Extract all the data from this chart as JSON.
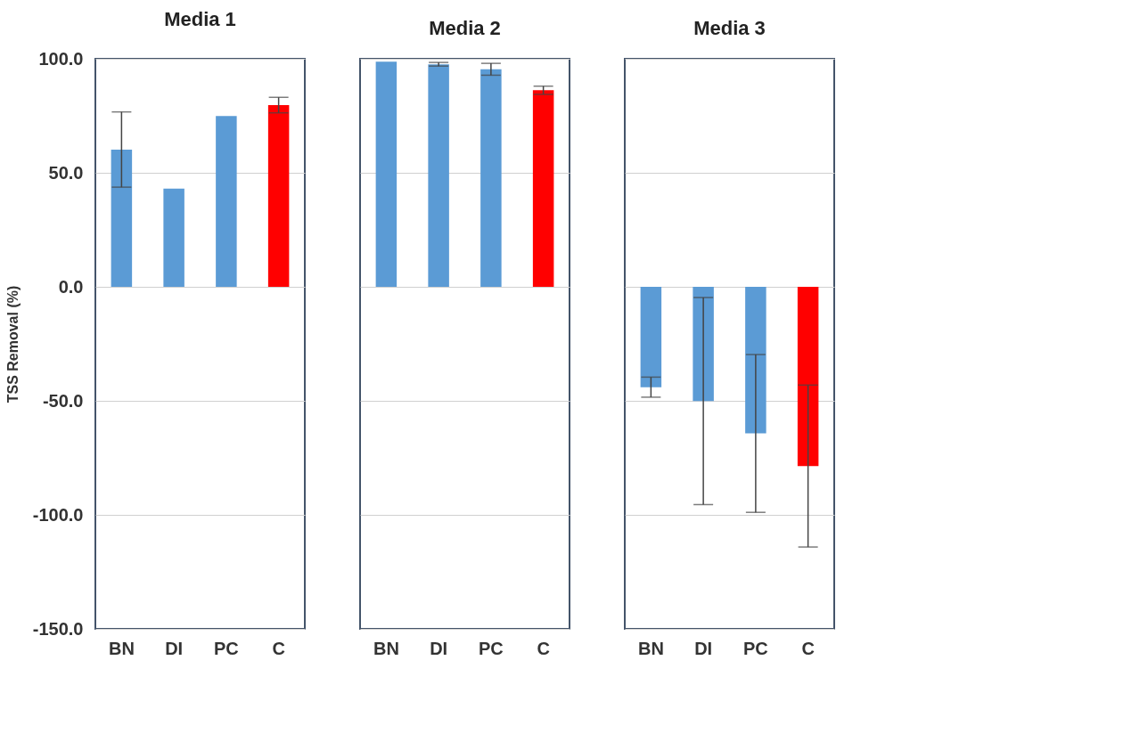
{
  "chart_data": [
    {
      "type": "bar",
      "title": "Media 1",
      "ylabel": "TSS Removal (%)",
      "categories": [
        "BN",
        "DI",
        "PC",
        "C"
      ],
      "values": [
        60.2,
        43.1,
        74.9,
        79.7
      ],
      "colors": [
        "#5b9bd5",
        "#5b9bd5",
        "#5b9bd5",
        "#ff0000"
      ],
      "errors": [
        16.5,
        null,
        null,
        3.4
      ],
      "ylim": [
        -150,
        100
      ],
      "yticks": [
        {
          "value": -150,
          "label": "-150.0"
        },
        {
          "value": -100,
          "label": "-100.0"
        },
        {
          "value": -50,
          "label": "-50.0"
        },
        {
          "value": 0,
          "label": "0.0"
        },
        {
          "value": 50,
          "label": "50.0"
        },
        {
          "value": 100,
          "label": "100.0"
        }
      ],
      "grid": "y"
    },
    {
      "type": "bar",
      "title": "Media 2",
      "categories": [
        "BN",
        "DI",
        "PC",
        "C"
      ],
      "values": [
        98.7,
        97.6,
        95.4,
        86.2
      ],
      "colors": [
        "#5b9bd5",
        "#5b9bd5",
        "#5b9bd5",
        "#ff0000"
      ],
      "errors": [
        null,
        0.8,
        2.6,
        1.8
      ],
      "ylim": [
        -150,
        100
      ],
      "grid": "y",
      "tick_labels": "x"
    },
    {
      "type": "bar",
      "title": "Media 3",
      "categories": [
        "BN",
        "DI",
        "PC",
        "C"
      ],
      "values": [
        -44.0,
        -50.1,
        -64.3,
        -78.6
      ],
      "colors": [
        "#5b9bd5",
        "#5b9bd5",
        "#5b9bd5",
        "#ff0000"
      ],
      "errors": [
        4.4,
        45.4,
        34.6,
        35.5
      ],
      "ylim": [
        -150,
        100
      ],
      "grid": "y",
      "tick_labels": "x"
    }
  ]
}
